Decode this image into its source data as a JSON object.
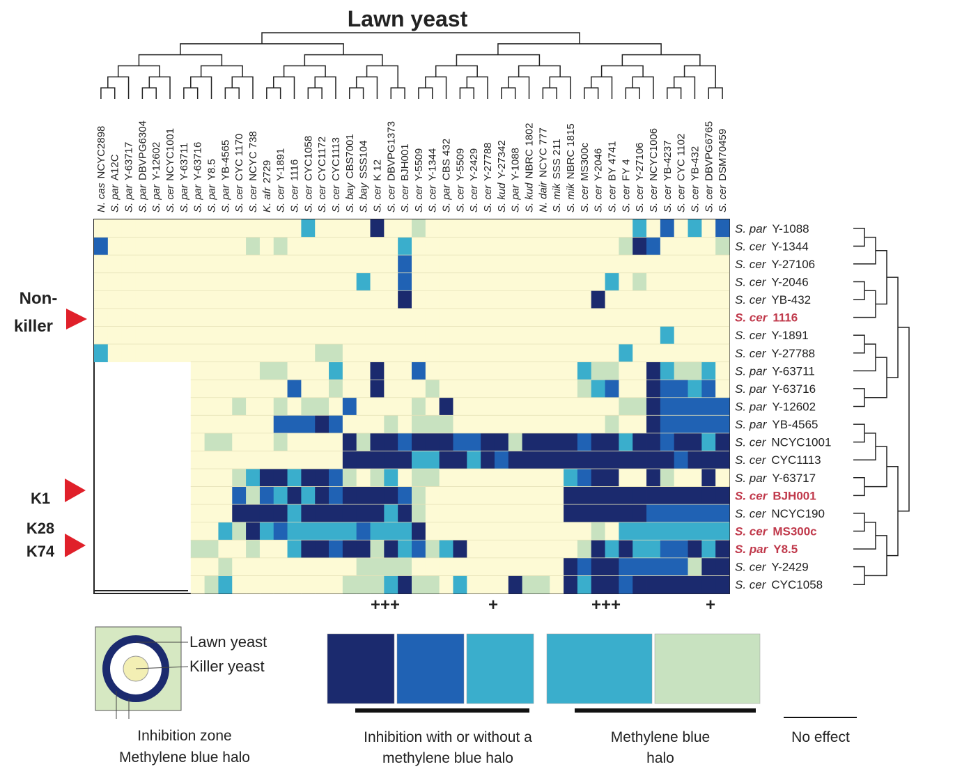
{
  "chart_data": {
    "type": "heatmap",
    "title": "Lawn yeast",
    "columns": {
      "species": [
        "N. cas",
        "S. par",
        "S. par",
        "S. par",
        "S. par",
        "S. cer",
        "S. par",
        "S. par",
        "S. par",
        "S. par",
        "S. cer",
        "S. cer",
        "K. afr",
        "S. cer",
        "S. cer",
        "S. cer",
        "S. cer",
        "S. cer",
        "S. bay",
        "S. bay",
        "S. cer",
        "S. cer",
        "S. cer",
        "S. cer",
        "S. cer",
        "S. par",
        "S. cer",
        "S. cer",
        "S. cer",
        "S. kud",
        "S. par",
        "S. kud",
        "N. dair",
        "S. mik",
        "S. mik",
        "S. cer",
        "S. cer",
        "S. cer",
        "S. cer",
        "S. cer",
        "S. cer",
        "S. cer",
        "S. cer",
        "S. cer",
        "S. cer",
        "S. cer"
      ],
      "strains": [
        "NCYC2898",
        "A12C",
        "Y-63717",
        "DBVPG6304",
        "Y-12602",
        "NCYC1001",
        "Y-63711",
        "Y-63716",
        "Y8.5",
        "YB-4565",
        "CYC 1170",
        "NCYC 738",
        "2729",
        "Y-1891",
        "1116",
        "CYC1058",
        "CYC1172",
        "CYC1113",
        "CBS7001",
        "SSS104",
        "K 12",
        "DBVPG1373",
        "BJH001",
        "Y-5509",
        "Y-1344",
        "CBS 432",
        "Y-5509",
        "Y-2429",
        "Y-27788",
        "Y-27342",
        "Y-1088",
        "NBRC 1802",
        "NCYC 777",
        "SSS 211",
        "NBRC 1815",
        "MS300c",
        "Y-2046",
        "BY 4741",
        "FY 4",
        "Y-27106",
        "NCYC1006",
        "YB-4237",
        "CYC 1102",
        "YB-432",
        "DBVPG6765",
        "DSM70459"
      ]
    },
    "rows": [
      {
        "species": "S. par",
        "strain": "Y-1088"
      },
      {
        "species": "S. cer",
        "strain": "Y-1344"
      },
      {
        "species": "S. cer",
        "strain": "Y-27106"
      },
      {
        "species": "S. cer",
        "strain": "Y-2046"
      },
      {
        "species": "S. cer",
        "strain": "YB-432"
      },
      {
        "species": "S. cer",
        "strain": "1116",
        "color": "#c0394b"
      },
      {
        "species": "S. cer",
        "strain": "Y-1891"
      },
      {
        "species": "S. cer",
        "strain": "Y-27788"
      },
      {
        "species": "S. par",
        "strain": "Y-63711"
      },
      {
        "species": "S. par",
        "strain": "Y-63716"
      },
      {
        "species": "S. par",
        "strain": "Y-12602"
      },
      {
        "species": "S. par",
        "strain": "YB-4565"
      },
      {
        "species": "S. cer",
        "strain": "NCYC1001"
      },
      {
        "species": "S. cer",
        "strain": "CYC1113"
      },
      {
        "species": "S. par",
        "strain": "Y-63717"
      },
      {
        "species": "S. cer",
        "strain": "BJH001",
        "color": "#c0394b"
      },
      {
        "species": "S. cer",
        "strain": "NCYC190"
      },
      {
        "species": "S. cer",
        "strain": "MS300c",
        "color": "#c0394b"
      },
      {
        "species": "S. par",
        "strain": "Y8.5",
        "color": "#c0394b"
      },
      {
        "species": "S. cer",
        "strain": "Y-2429"
      },
      {
        "species": "S. cer",
        "strain": "CYC1058"
      }
    ],
    "values": [
      [
        0,
        0,
        0,
        0,
        0,
        0,
        0,
        0,
        0,
        0,
        0,
        0,
        0,
        0,
        0,
        2,
        0,
        0,
        0,
        0,
        4,
        0,
        0,
        1,
        0,
        0,
        0,
        0,
        0,
        0,
        0,
        0,
        0,
        0,
        0,
        0,
        0,
        0,
        0,
        2,
        0,
        3,
        0,
        2,
        0,
        3
      ],
      [
        3,
        0,
        0,
        0,
        0,
        0,
        0,
        0,
        0,
        0,
        0,
        1,
        0,
        1,
        0,
        0,
        0,
        0,
        0,
        0,
        0,
        0,
        2,
        0,
        0,
        0,
        0,
        0,
        0,
        0,
        0,
        0,
        0,
        0,
        0,
        0,
        0,
        0,
        1,
        4,
        3,
        0,
        0,
        0,
        0,
        1
      ],
      [
        0,
        0,
        0,
        0,
        0,
        0,
        0,
        0,
        0,
        0,
        0,
        0,
        0,
        0,
        0,
        0,
        0,
        0,
        0,
        0,
        0,
        0,
        3,
        0,
        0,
        0,
        0,
        0,
        0,
        0,
        0,
        0,
        0,
        0,
        0,
        0,
        0,
        0,
        0,
        0,
        0,
        0,
        0,
        0,
        0,
        0
      ],
      [
        0,
        0,
        0,
        0,
        0,
        0,
        0,
        0,
        0,
        0,
        0,
        0,
        0,
        0,
        0,
        0,
        0,
        0,
        0,
        2,
        0,
        0,
        3,
        0,
        0,
        0,
        0,
        0,
        0,
        0,
        0,
        0,
        0,
        0,
        0,
        0,
        0,
        2,
        0,
        1,
        0,
        0,
        0,
        0,
        0,
        0
      ],
      [
        0,
        0,
        0,
        0,
        0,
        0,
        0,
        0,
        0,
        0,
        0,
        0,
        0,
        0,
        0,
        0,
        0,
        0,
        0,
        0,
        0,
        0,
        4,
        0,
        0,
        0,
        0,
        0,
        0,
        0,
        0,
        0,
        0,
        0,
        0,
        0,
        4,
        0,
        0,
        0,
        0,
        0,
        0,
        0,
        0,
        0
      ],
      [
        0,
        0,
        0,
        0,
        0,
        0,
        0,
        0,
        0,
        0,
        0,
        0,
        0,
        0,
        0,
        0,
        0,
        0,
        0,
        0,
        0,
        0,
        0,
        0,
        0,
        0,
        0,
        0,
        0,
        0,
        0,
        0,
        0,
        0,
        0,
        0,
        0,
        0,
        0,
        0,
        0,
        0,
        0,
        0,
        0,
        0
      ],
      [
        0,
        0,
        0,
        0,
        0,
        0,
        0,
        0,
        0,
        0,
        0,
        0,
        0,
        0,
        0,
        0,
        0,
        0,
        0,
        0,
        0,
        0,
        0,
        0,
        0,
        0,
        0,
        0,
        0,
        0,
        0,
        0,
        0,
        0,
        0,
        0,
        0,
        0,
        0,
        0,
        0,
        2,
        0,
        0,
        0,
        0
      ],
      [
        2,
        0,
        0,
        0,
        0,
        0,
        0,
        0,
        0,
        0,
        0,
        0,
        0,
        0,
        0,
        0,
        1,
        1,
        0,
        0,
        0,
        0,
        0,
        0,
        0,
        0,
        0,
        0,
        0,
        0,
        0,
        0,
        0,
        0,
        0,
        0,
        0,
        0,
        2,
        0,
        0,
        0,
        0,
        0,
        0,
        0
      ],
      [
        null,
        null,
        null,
        null,
        null,
        null,
        null,
        0,
        0,
        0,
        0,
        0,
        1,
        1,
        0,
        0,
        0,
        2,
        0,
        0,
        4,
        0,
        0,
        3,
        0,
        0,
        0,
        0,
        0,
        0,
        0,
        0,
        0,
        0,
        0,
        2,
        1,
        1,
        0,
        0,
        4,
        2,
        1,
        1,
        2,
        0
      ],
      [
        null,
        null,
        null,
        null,
        null,
        null,
        null,
        0,
        0,
        0,
        0,
        0,
        0,
        0,
        3,
        0,
        0,
        1,
        0,
        0,
        4,
        0,
        0,
        0,
        1,
        0,
        0,
        0,
        0,
        0,
        0,
        0,
        0,
        0,
        0,
        1,
        2,
        3,
        0,
        0,
        4,
        3,
        3,
        2,
        3,
        0
      ],
      [
        null,
        null,
        null,
        null,
        null,
        null,
        null,
        0,
        0,
        0,
        1,
        0,
        0,
        1,
        0,
        1,
        1,
        0,
        3,
        0,
        0,
        0,
        0,
        1,
        0,
        4,
        0,
        0,
        0,
        0,
        0,
        0,
        0,
        0,
        0,
        0,
        0,
        0,
        1,
        1,
        4,
        3,
        3,
        3,
        3,
        3
      ],
      [
        null,
        null,
        null,
        null,
        null,
        null,
        null,
        0,
        0,
        0,
        0,
        0,
        0,
        3,
        3,
        3,
        4,
        3,
        0,
        0,
        0,
        1,
        0,
        1,
        1,
        1,
        0,
        0,
        0,
        0,
        0,
        0,
        0,
        0,
        0,
        0,
        0,
        1,
        0,
        0,
        4,
        3,
        3,
        3,
        3,
        3
      ],
      [
        null,
        null,
        null,
        null,
        null,
        null,
        null,
        0,
        1,
        1,
        0,
        0,
        0,
        1,
        0,
        0,
        0,
        0,
        4,
        1,
        4,
        4,
        3,
        4,
        4,
        4,
        3,
        3,
        4,
        4,
        1,
        4,
        4,
        4,
        4,
        3,
        4,
        4,
        2,
        4,
        4,
        3,
        4,
        4,
        2,
        4
      ],
      [
        null,
        null,
        null,
        null,
        null,
        null,
        null,
        0,
        0,
        0,
        0,
        0,
        0,
        0,
        0,
        0,
        0,
        0,
        4,
        4,
        4,
        4,
        4,
        2,
        2,
        4,
        4,
        2,
        4,
        3,
        4,
        4,
        4,
        4,
        4,
        4,
        4,
        4,
        4,
        4,
        4,
        4,
        3,
        4,
        4,
        4
      ],
      [
        null,
        null,
        null,
        null,
        null,
        null,
        null,
        0,
        0,
        0,
        1,
        2,
        4,
        4,
        2,
        4,
        4,
        3,
        1,
        0,
        1,
        2,
        0,
        1,
        1,
        0,
        0,
        0,
        0,
        0,
        0,
        0,
        0,
        0,
        2,
        3,
        4,
        4,
        0,
        0,
        4,
        1,
        0,
        0,
        4,
        0
      ],
      [
        null,
        null,
        null,
        null,
        null,
        null,
        null,
        0,
        0,
        0,
        3,
        1,
        3,
        2,
        4,
        2,
        4,
        3,
        4,
        4,
        4,
        4,
        3,
        1,
        0,
        0,
        0,
        0,
        0,
        0,
        0,
        0,
        0,
        0,
        4,
        4,
        4,
        4,
        4,
        4,
        4,
        4,
        4,
        4,
        4,
        4
      ],
      [
        null,
        null,
        null,
        null,
        null,
        null,
        null,
        0,
        0,
        0,
        4,
        4,
        4,
        4,
        2,
        4,
        4,
        4,
        4,
        4,
        4,
        2,
        4,
        1,
        0,
        0,
        0,
        0,
        0,
        0,
        0,
        0,
        0,
        0,
        4,
        4,
        4,
        4,
        4,
        4,
        3,
        3,
        3,
        3,
        3,
        3
      ],
      [
        null,
        null,
        null,
        null,
        null,
        null,
        null,
        0,
        0,
        2,
        1,
        4,
        2,
        3,
        2,
        2,
        2,
        2,
        2,
        3,
        2,
        2,
        2,
        4,
        0,
        0,
        0,
        0,
        0,
        0,
        0,
        0,
        0,
        0,
        0,
        0,
        1,
        0,
        2,
        2,
        2,
        2,
        2,
        2,
        2,
        2
      ],
      [
        null,
        null,
        null,
        null,
        null,
        null,
        null,
        1,
        1,
        0,
        0,
        1,
        0,
        0,
        2,
        4,
        4,
        3,
        4,
        4,
        1,
        4,
        2,
        3,
        1,
        2,
        4,
        0,
        0,
        0,
        0,
        0,
        0,
        0,
        0,
        1,
        4,
        2,
        4,
        2,
        2,
        3,
        3,
        4,
        2,
        4
      ],
      [
        null,
        null,
        null,
        null,
        null,
        null,
        null,
        0,
        0,
        1,
        0,
        0,
        0,
        0,
        0,
        0,
        0,
        0,
        0,
        1,
        1,
        1,
        1,
        0,
        0,
        0,
        0,
        0,
        0,
        0,
        0,
        0,
        0,
        0,
        4,
        3,
        4,
        4,
        3,
        3,
        3,
        3,
        3,
        1,
        4,
        4
      ],
      [
        null,
        null,
        null,
        null,
        null,
        null,
        null,
        0,
        1,
        2,
        0,
        0,
        0,
        0,
        0,
        0,
        0,
        0,
        1,
        1,
        1,
        2,
        4,
        1,
        1,
        0,
        2,
        0,
        0,
        0,
        4,
        1,
        1,
        0,
        4,
        2,
        4,
        4,
        3,
        4,
        4,
        4,
        4,
        4,
        4,
        4
      ]
    ],
    "level_colors": [
      "#fdfad5",
      "#c8e2c0",
      "#3aaecc",
      "#2062b4",
      "#1b2a6e"
    ],
    "group_labels": [
      "Non-",
      "killer",
      "K1",
      "K28",
      "K74"
    ],
    "annotations": [
      "+++",
      "+",
      "+++",
      "+"
    ],
    "legend": {
      "diagram_labels": [
        "Lawn yeast",
        "Killer yeast",
        "Inhibition zone",
        "Methylene blue halo"
      ],
      "entries": [
        {
          "lines": [
            "Inhibition with or without a",
            "methylene blue halo"
          ],
          "levels": [
            4,
            3,
            2
          ]
        },
        {
          "lines": [
            "Methylene blue",
            "halo"
          ],
          "levels": [
            2,
            1
          ]
        },
        {
          "lines": [
            "No effect"
          ],
          "levels": [
            0
          ]
        }
      ]
    }
  }
}
